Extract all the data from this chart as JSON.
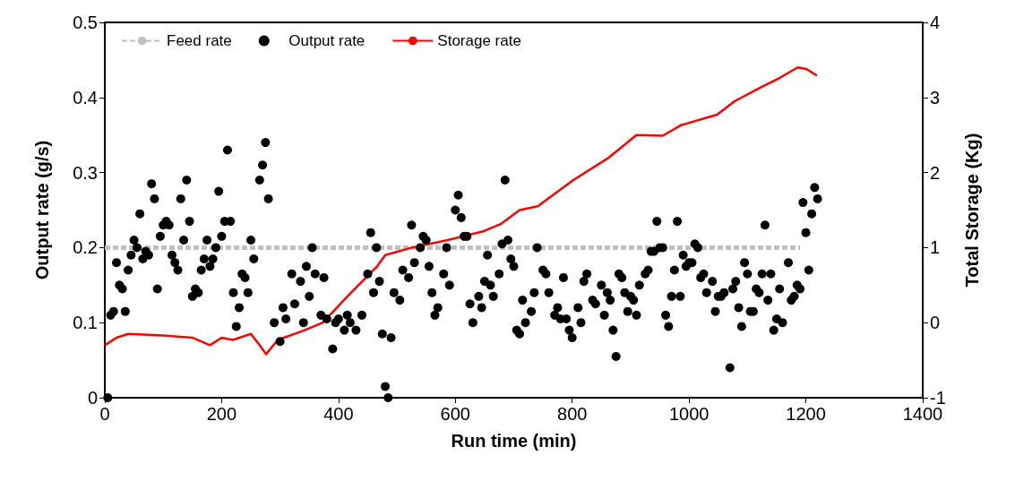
{
  "chart_data": {
    "type": "scatter",
    "xlabel": "Run time (min)",
    "ylabel": "Output rate (g/s)",
    "y2label": "Total Storage (Kg)",
    "xlim": [
      0,
      1400
    ],
    "xticks": [
      0,
      200,
      400,
      600,
      800,
      1000,
      1200,
      1400
    ],
    "ylim": [
      0,
      0.5
    ],
    "yticks": [
      0,
      0.1,
      0.2,
      0.3,
      0.4,
      0.5
    ],
    "y2lim": [
      -1,
      4
    ],
    "y2ticks": [
      -1,
      0,
      1,
      2,
      3,
      4
    ],
    "legend": "top left",
    "grid": false,
    "series": [
      {
        "name": "Feed rate",
        "type": "line",
        "color": "#c0c0c0",
        "line_style": "dashed",
        "marker": "none",
        "x": [
          0,
          1190
        ],
        "values": [
          0.2,
          0.2
        ]
      },
      {
        "name": "Output rate",
        "color": "#000000",
        "marker": "circle",
        "x": [
          5,
          10,
          15,
          20,
          25,
          30,
          35,
          40,
          45,
          50,
          55,
          60,
          65,
          70,
          75,
          80,
          85,
          90,
          95,
          100,
          105,
          110,
          115,
          120,
          125,
          130,
          135,
          140,
          145,
          150,
          155,
          160,
          165,
          170,
          175,
          180,
          185,
          190,
          195,
          200,
          205,
          210,
          215,
          220,
          225,
          230,
          235,
          240,
          245,
          250,
          255,
          265,
          270,
          275,
          280,
          290,
          300,
          305,
          310,
          320,
          325,
          335,
          340,
          345,
          350,
          355,
          360,
          370,
          375,
          380,
          390,
          395,
          400,
          410,
          415,
          420,
          430,
          440,
          450,
          455,
          460,
          465,
          470,
          475,
          480,
          485,
          490,
          495,
          505,
          510,
          520,
          525,
          530,
          540,
          545,
          550,
          555,
          560,
          565,
          570,
          580,
          585,
          590,
          600,
          605,
          610,
          615,
          620,
          625,
          630,
          640,
          645,
          650,
          655,
          660,
          665,
          675,
          680,
          685,
          690,
          695,
          700,
          705,
          710,
          715,
          720,
          730,
          735,
          740,
          750,
          755,
          760,
          770,
          775,
          780,
          785,
          790,
          795,
          800,
          810,
          815,
          820,
          825,
          835,
          840,
          850,
          855,
          860,
          865,
          870,
          875,
          880,
          885,
          890,
          895,
          900,
          905,
          910,
          915,
          925,
          930,
          935,
          940,
          945,
          950,
          955,
          960,
          965,
          970,
          975,
          980,
          985,
          990,
          995,
          1000,
          1005,
          1010,
          1015,
          1020,
          1025,
          1030,
          1040,
          1045,
          1050,
          1055,
          1060,
          1070,
          1075,
          1080,
          1085,
          1090,
          1095,
          1100,
          1105,
          1110,
          1115,
          1120,
          1125,
          1130,
          1135,
          1140,
          1145,
          1150,
          1155,
          1160,
          1170,
          1175,
          1180,
          1185,
          1190,
          1195,
          1200,
          1205,
          1210,
          1215,
          1220
        ],
        "values": [
          0,
          0.11,
          0.115,
          0.18,
          0.15,
          0.145,
          0.115,
          0.17,
          0.19,
          0.21,
          0.2,
          0.245,
          0.185,
          0.195,
          0.19,
          0.285,
          0.265,
          0.145,
          0.215,
          0.23,
          0.235,
          0.23,
          0.19,
          0.18,
          0.17,
          0.265,
          0.21,
          0.29,
          0.235,
          0.135,
          0.145,
          0.14,
          0.17,
          0.185,
          0.21,
          0.175,
          0.185,
          0.2,
          0.275,
          0.215,
          0.235,
          0.33,
          0.235,
          0.14,
          0.095,
          0.12,
          0.165,
          0.16,
          0.14,
          0.21,
          0.185,
          0.29,
          0.31,
          0.34,
          0.265,
          0.1,
          0.075,
          0.12,
          0.105,
          0.165,
          0.125,
          0.155,
          0.1,
          0.175,
          0.135,
          0.2,
          0.165,
          0.11,
          0.16,
          0.105,
          0.065,
          0.1,
          0.105,
          0.09,
          0.11,
          0.1,
          0.09,
          0.11,
          0.165,
          0.22,
          0.14,
          0.2,
          0.155,
          0.085,
          0.015,
          0,
          0.08,
          0.14,
          0.13,
          0.17,
          0.16,
          0.23,
          0.18,
          0.2,
          0.215,
          0.21,
          0.175,
          0.14,
          0.11,
          0.12,
          0.165,
          0.2,
          0.15,
          0.25,
          0.27,
          0.24,
          0.215,
          0.215,
          0.125,
          0.1,
          0.135,
          0.12,
          0.155,
          0.19,
          0.15,
          0.135,
          0.165,
          0.205,
          0.29,
          0.21,
          0.185,
          0.175,
          0.09,
          0.085,
          0.13,
          0.1,
          0.115,
          0.14,
          0.2,
          0.17,
          0.165,
          0.14,
          0.11,
          0.12,
          0.105,
          0.16,
          0.105,
          0.09,
          0.08,
          0.12,
          0.1,
          0.155,
          0.165,
          0.13,
          0.125,
          0.15,
          0.11,
          0.14,
          0.13,
          0.09,
          0.055,
          0.165,
          0.16,
          0.14,
          0.115,
          0.135,
          0.13,
          0.11,
          0.15,
          0.165,
          0.17,
          0.195,
          0.195,
          0.235,
          0.2,
          0.2,
          0.11,
          0.095,
          0.135,
          0.17,
          0.235,
          0.135,
          0.19,
          0.175,
          0.18,
          0.18,
          0.205,
          0.2,
          0.16,
          0.165,
          0.14,
          0.155,
          0.115,
          0.135,
          0.135,
          0.14,
          0.04,
          0.145,
          0.155,
          0.12,
          0.095,
          0.18,
          0.165,
          0.115,
          0.115,
          0.145,
          0.14,
          0.165,
          0.23,
          0.13,
          0.165,
          0.09,
          0.105,
          0.145,
          0.1,
          0.18,
          0.13,
          0.135,
          0.15,
          0.145,
          0.26,
          0.22,
          0.17,
          0.245,
          0.28,
          0.265
        ]
      },
      {
        "name": "Storage rate",
        "type": "line",
        "axis": "y2",
        "color": "#ff0000",
        "line_style": "solid",
        "marker": "none",
        "x": [
          0,
          20,
          40,
          100,
          150,
          180,
          200,
          219,
          250,
          265,
          276,
          296,
          342,
          373,
          419,
          465,
          480,
          526,
          587,
          649,
          679,
          710,
          741,
          802,
          863,
          910,
          955,
          986,
          1048,
          1078,
          1124,
          1155,
          1186,
          1201,
          1219
        ],
        "values": [
          -0.3,
          -0.2,
          -0.15,
          -0.17,
          -0.2,
          -0.3,
          -0.2,
          -0.23,
          -0.15,
          -0.3,
          -0.42,
          -0.23,
          -0.1,
          0,
          0.38,
          0.74,
          0.9,
          1,
          1.1,
          1.22,
          1.32,
          1.5,
          1.55,
          1.9,
          2.2,
          2.5,
          2.49,
          2.63,
          2.77,
          2.95,
          3.14,
          3.26,
          3.4,
          3.38,
          3.29
        ]
      }
    ]
  }
}
